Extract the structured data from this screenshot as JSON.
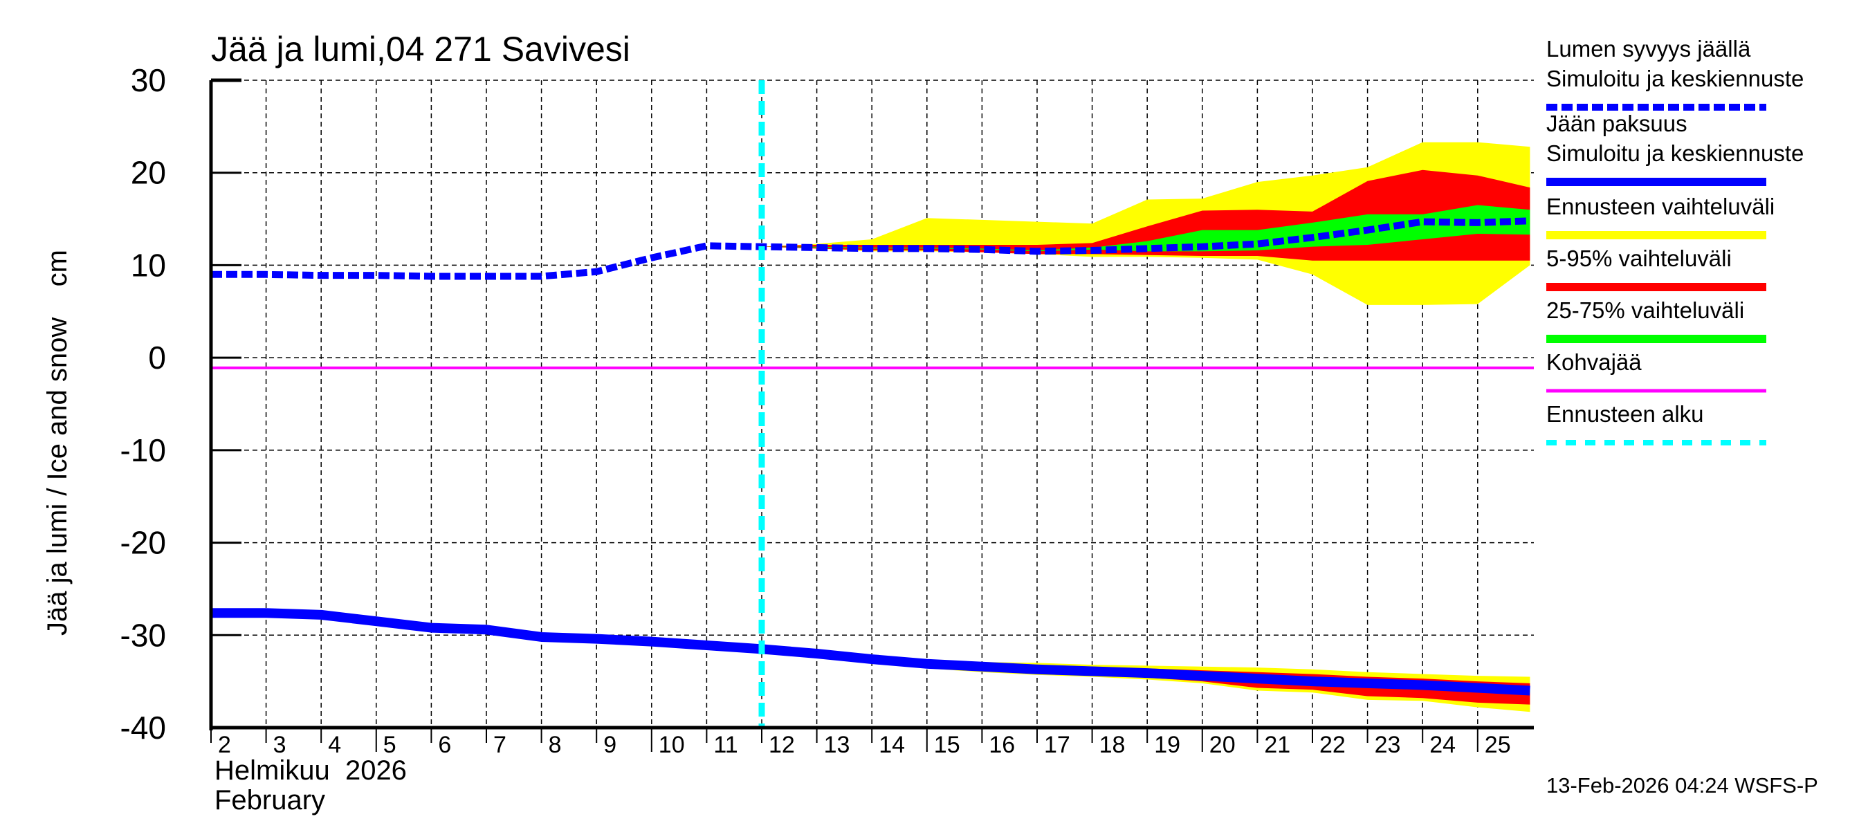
{
  "chart_data": {
    "type": "area",
    "title": "Jää ja lumi,04 271 Savivesi",
    "ylabel": "Jää ja lumi / Ice and snow    cm",
    "xlabel_lines": [
      "Helmikuu  2026",
      "February"
    ],
    "ylim": [
      -40,
      30
    ],
    "yticks": [
      30,
      20,
      10,
      0,
      -10,
      -20,
      -30,
      -40
    ],
    "xlim": [
      2,
      25.95
    ],
    "xticks": [
      2,
      3,
      4,
      5,
      6,
      7,
      8,
      9,
      10,
      11,
      12,
      13,
      14,
      15,
      16,
      17,
      18,
      19,
      20,
      21,
      22,
      23,
      24,
      25
    ],
    "grid": true,
    "forecast_start_day": 12,
    "kohvajaa_value": -1.1,
    "colors": {
      "snow": "#0000ff",
      "ice": "#0000ff",
      "range": "#ffff00",
      "p5_95": "#ff0000",
      "p25_75": "#00ff00",
      "kohvajaa": "#ff00ff",
      "forecast_start": "#00ffff"
    },
    "snow_depth": {
      "name": "Lumen syvyys jäällä – Simuloitu ja keskiennuste",
      "x": [
        2,
        3,
        4,
        5,
        6,
        7,
        8,
        9,
        10,
        11,
        12,
        13,
        14,
        15,
        16,
        17,
        18,
        19,
        20,
        21,
        22,
        23,
        24,
        25,
        25.95
      ],
      "values": [
        9.0,
        9.0,
        8.9,
        8.9,
        8.8,
        8.8,
        8.8,
        9.3,
        10.8,
        12.1,
        12.0,
        11.9,
        11.8,
        11.8,
        11.7,
        11.5,
        11.6,
        11.8,
        12.0,
        12.3,
        13.0,
        13.8,
        14.7,
        14.6,
        14.8
      ]
    },
    "snow_bands": {
      "x": [
        12,
        13,
        14,
        15,
        16,
        17,
        18,
        19,
        20,
        21,
        22,
        23,
        24,
        25,
        25.95
      ],
      "range_upper": [
        12.0,
        12.3,
        12.8,
        15.1,
        14.9,
        14.7,
        14.5,
        17.1,
        17.2,
        19.0,
        19.7,
        20.6,
        23.3,
        23.3,
        22.8
      ],
      "range_lower": [
        12.0,
        11.8,
        11.5,
        11.5,
        11.4,
        11.2,
        10.9,
        10.9,
        10.8,
        10.6,
        9.0,
        5.7,
        5.7,
        5.8,
        10.0
      ],
      "p5_95_upper": [
        12.0,
        12.2,
        12.2,
        12.2,
        12.2,
        12.2,
        12.4,
        14.2,
        15.9,
        16.0,
        15.8,
        19.1,
        20.3,
        19.7,
        18.4
      ],
      "p5_95_lower": [
        12.0,
        11.8,
        11.6,
        11.6,
        11.4,
        11.2,
        11.2,
        11.1,
        11.0,
        11.0,
        10.5,
        10.5,
        10.5,
        10.5,
        10.5
      ],
      "p25_75_upper": [
        12.0,
        12.0,
        11.9,
        11.9,
        11.8,
        11.6,
        11.9,
        12.6,
        13.8,
        13.8,
        14.6,
        15.5,
        15.5,
        16.5,
        16.0
      ],
      "p25_75_lower": [
        12.0,
        11.9,
        11.8,
        11.8,
        11.7,
        11.5,
        11.7,
        11.5,
        11.5,
        11.6,
        12.0,
        12.2,
        12.8,
        13.4,
        13.3
      ]
    },
    "ice_thickness": {
      "name": "Jään paksuus – Simuloitu ja keskiennuste",
      "x": [
        2,
        3,
        4,
        5,
        6,
        7,
        8,
        9,
        10,
        11,
        12,
        13,
        14,
        15,
        16,
        17,
        18,
        19,
        20,
        21,
        22,
        23,
        24,
        25,
        25.95
      ],
      "values": [
        -27.6,
        -27.6,
        -27.8,
        -28.5,
        -29.2,
        -29.4,
        -30.2,
        -30.4,
        -30.7,
        -31.1,
        -31.5,
        -32.0,
        -32.6,
        -33.1,
        -33.4,
        -33.7,
        -33.9,
        -34.1,
        -34.4,
        -34.7,
        -35.0,
        -35.2,
        -35.4,
        -35.7,
        -36.0
      ]
    },
    "ice_bands": {
      "x": [
        12,
        13,
        14,
        15,
        16,
        17,
        18,
        19,
        20,
        21,
        22,
        23,
        24,
        25,
        25.95
      ],
      "range_upper": [
        -31.5,
        -32.0,
        -32.4,
        -32.7,
        -32.9,
        -33.0,
        -33.2,
        -33.3,
        -33.4,
        -33.5,
        -33.7,
        -34.0,
        -34.2,
        -34.4,
        -34.5
      ],
      "range_lower": [
        -31.5,
        -32.0,
        -33.0,
        -33.6,
        -34.0,
        -34.3,
        -34.5,
        -34.8,
        -35.2,
        -36.0,
        -36.2,
        -37.0,
        -37.1,
        -37.8,
        -38.3
      ],
      "p5_95_upper": [
        -31.5,
        -32.0,
        -32.5,
        -32.8,
        -33.0,
        -33.2,
        -33.4,
        -33.6,
        -33.8,
        -34.0,
        -34.2,
        -34.5,
        -34.7,
        -35.0,
        -35.2
      ],
      "p5_95_lower": [
        -31.5,
        -32.0,
        -32.9,
        -33.5,
        -33.8,
        -34.1,
        -34.3,
        -34.6,
        -35.0,
        -35.7,
        -35.9,
        -36.6,
        -36.8,
        -37.3,
        -37.5
      ],
      "p25_75_upper": [
        -31.5,
        -32.0,
        -32.6,
        -33.0,
        -33.3,
        -33.6,
        -33.8,
        -34.0,
        -34.3,
        -34.5,
        -34.8,
        -35.0,
        -35.2,
        -35.5,
        -35.7
      ],
      "p25_75_lower": [
        -31.5,
        -32.0,
        -32.7,
        -33.2,
        -33.5,
        -33.8,
        -34.0,
        -34.2,
        -34.5,
        -34.9,
        -35.2,
        -35.4,
        -35.6,
        -35.9,
        -36.2
      ]
    }
  },
  "legend": {
    "items": [
      {
        "lines": [
          "Lumen syvyys jäällä",
          "Simuloitu ja keskiennuste"
        ],
        "color": "#0000ff",
        "style": "dashed"
      },
      {
        "lines": [
          "Jään paksuus",
          "Simuloitu ja keskiennuste"
        ],
        "color": "#0000ff",
        "style": "solid"
      },
      {
        "lines": [
          "Ennusteen vaihteluväli"
        ],
        "color": "#ffff00",
        "style": "solid"
      },
      {
        "lines": [
          "5-95% vaihteluväli"
        ],
        "color": "#ff0000",
        "style": "solid"
      },
      {
        "lines": [
          "25-75% vaihteluväli"
        ],
        "color": "#00ff00",
        "style": "solid"
      },
      {
        "lines": [
          "Kohvajää"
        ],
        "color": "#ff00ff",
        "style": "thin"
      },
      {
        "lines": [
          "Ennusteen alku"
        ],
        "color": "#00ffff",
        "style": "dotted"
      }
    ]
  },
  "footer": {
    "timestamp": "13-Feb-2026 04:24 WSFS-P"
  }
}
